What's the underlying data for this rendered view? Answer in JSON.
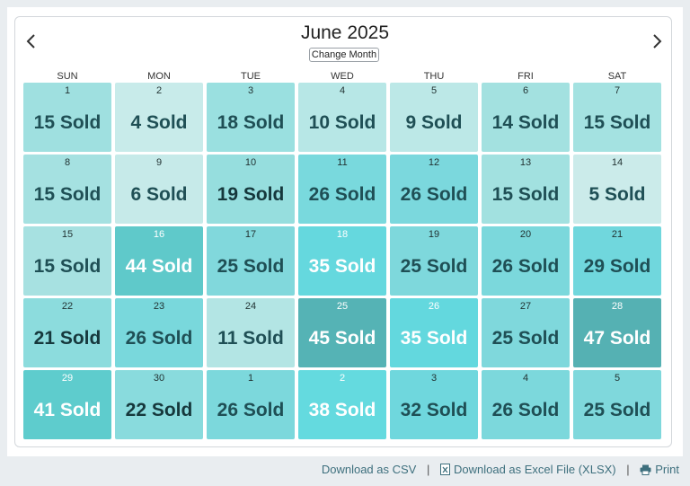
{
  "calendar": {
    "title": "June 2025",
    "change_month_label": "Change Month",
    "weekdays": [
      "SUN",
      "MON",
      "TUE",
      "WED",
      "THU",
      "FRI",
      "SAT"
    ],
    "days": [
      {
        "num": "1",
        "sold": "15 Sold",
        "color": "#9fe0e0"
      },
      {
        "num": "2",
        "sold": "4 Sold",
        "color": "#c8ebea"
      },
      {
        "num": "3",
        "sold": "18 Sold",
        "color": "#9ae0e0"
      },
      {
        "num": "4",
        "sold": "10 Sold",
        "color": "#b7e7e6"
      },
      {
        "num": "5",
        "sold": "9 Sold",
        "color": "#bce8e7"
      },
      {
        "num": "6",
        "sold": "14 Sold",
        "color": "#a3e1e0"
      },
      {
        "num": "7",
        "sold": "15 Sold",
        "color": "#a4e2e1"
      },
      {
        "num": "8",
        "sold": "15 Sold",
        "color": "#a5e1e1"
      },
      {
        "num": "9",
        "sold": "6 Sold",
        "color": "#c6eae9"
      },
      {
        "num": "10",
        "sold": "19 Sold",
        "color": "#96dede"
      },
      {
        "num": "11",
        "sold": "26 Sold",
        "color": "#79d9dd"
      },
      {
        "num": "12",
        "sold": "26 Sold",
        "color": "#7bd8dd"
      },
      {
        "num": "13",
        "sold": "15 Sold",
        "color": "#a2e1e0"
      },
      {
        "num": "14",
        "sold": "5 Sold",
        "color": "#cbebea"
      },
      {
        "num": "15",
        "sold": "15 Sold",
        "color": "#a7e1e1"
      },
      {
        "num": "16",
        "sold": "44 Sold",
        "color": "#5fc9ca"
      },
      {
        "num": "17",
        "sold": "25 Sold",
        "color": "#81d8dc"
      },
      {
        "num": "18",
        "sold": "35 Sold",
        "color": "#65d8de"
      },
      {
        "num": "19",
        "sold": "25 Sold",
        "color": "#7ed8dc"
      },
      {
        "num": "20",
        "sold": "26 Sold",
        "color": "#7bd8dc"
      },
      {
        "num": "21",
        "sold": "29 Sold",
        "color": "#70d7dd"
      },
      {
        "num": "22",
        "sold": "21 Sold",
        "color": "#8cdcdd"
      },
      {
        "num": "23",
        "sold": "26 Sold",
        "color": "#79d8dc"
      },
      {
        "num": "24",
        "sold": "11 Sold",
        "color": "#b3e5e4"
      },
      {
        "num": "25",
        "sold": "45 Sold",
        "color": "#55b3b5"
      },
      {
        "num": "26",
        "sold": "35 Sold",
        "color": "#63d8de"
      },
      {
        "num": "27",
        "sold": "25 Sold",
        "color": "#7fd8dc"
      },
      {
        "num": "28",
        "sold": "47 Sold",
        "color": "#55b1b3"
      },
      {
        "num": "29",
        "sold": "41 Sold",
        "color": "#5ecccd"
      },
      {
        "num": "30",
        "sold": "22 Sold",
        "color": "#89dbdd"
      },
      {
        "num": "1",
        "sold": "26 Sold",
        "color": "#7cd8dc"
      },
      {
        "num": "2",
        "sold": "38 Sold",
        "color": "#64dadf"
      },
      {
        "num": "3",
        "sold": "32 Sold",
        "color": "#6fd7dd"
      },
      {
        "num": "4",
        "sold": "26 Sold",
        "color": "#7cd8dc"
      },
      {
        "num": "5",
        "sold": "25 Sold",
        "color": "#7fd8dc"
      }
    ]
  },
  "footer": {
    "csv_label": "Download as CSV",
    "xlsx_label": "Download as Excel File (XLSX)",
    "print_label": "Print",
    "separator": "|"
  }
}
